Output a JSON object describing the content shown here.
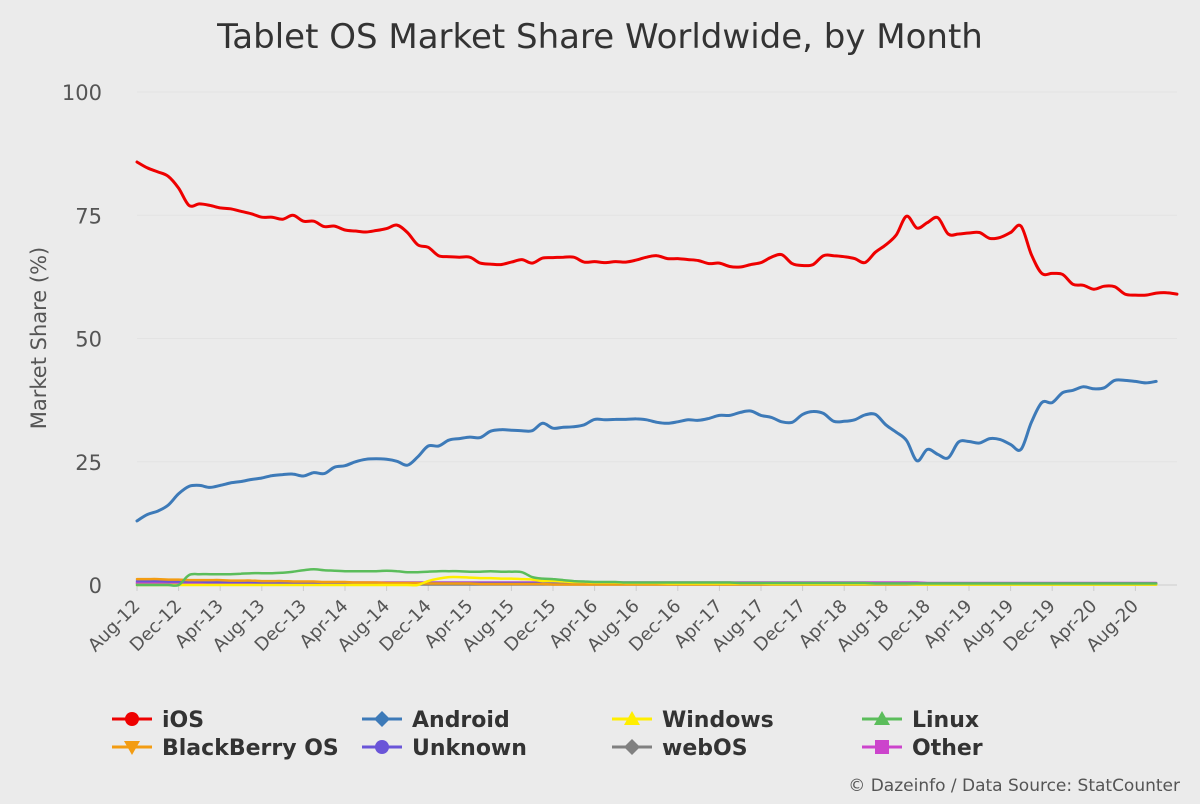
{
  "chart_data": {
    "type": "line",
    "title": "Tablet OS Market Share Worldwide, by Month",
    "ylabel": "Market Share (%)",
    "xlabel": "",
    "ylim": [
      0,
      100
    ],
    "yticks": [
      0,
      25,
      50,
      75,
      100
    ],
    "grid": true,
    "legend_position": "bottom",
    "credit": "© Dazeinfo / Data Source: StatCounter",
    "x_tick_labels": [
      "Aug-12",
      "Dec-12",
      "Apr-13",
      "Aug-13",
      "Dec-13",
      "Apr-14",
      "Aug-14",
      "Dec-14",
      "Apr-15",
      "Aug-15",
      "Dec-15",
      "Apr-16",
      "Aug-16",
      "Dec-16",
      "Apr-17",
      "Aug-17",
      "Dec-17",
      "Apr-18",
      "Aug-18",
      "Dec-18",
      "Apr-19",
      "Aug-19",
      "Dec-19",
      "Apr-20",
      "Aug-20"
    ],
    "x_start": "Aug-12",
    "x_end": "Oct-20",
    "series": [
      {
        "name": "iOS",
        "color": "#ee0000",
        "marker": "circle",
        "values": [
          85.8,
          84.6,
          83.8,
          82.9,
          80.5,
          77.0,
          77.3,
          77.0,
          76.5,
          76.3,
          75.8,
          75.3,
          74.6,
          74.6,
          74.2,
          75.0,
          73.8,
          73.8,
          72.7,
          72.8,
          72.0,
          71.8,
          71.6,
          71.9,
          72.3,
          73.0,
          71.5,
          69.0,
          68.5,
          66.8,
          66.6,
          66.5,
          66.5,
          65.3,
          65.1,
          65.0,
          65.5,
          66.0,
          65.3,
          66.3,
          66.4,
          66.5,
          66.5,
          65.5,
          65.6,
          65.4,
          65.6,
          65.5,
          65.9,
          66.5,
          66.8,
          66.2,
          66.2,
          66.0,
          65.8,
          65.2,
          65.3,
          64.6,
          64.5,
          65.0,
          65.4,
          66.5,
          67.0,
          65.2,
          64.8,
          65.0,
          66.8,
          66.8,
          66.6,
          66.2,
          65.4,
          67.5,
          69.0,
          71.0,
          74.8,
          72.4,
          73.5,
          74.5,
          71.2,
          71.2,
          71.4,
          71.5,
          70.3,
          70.5,
          71.5,
          72.8,
          67.0,
          63.2,
          63.2,
          63.0,
          61.0,
          60.8,
          60.0,
          60.6,
          60.5,
          59.0,
          58.8,
          58.8,
          59.2,
          59.3,
          59.0
        ]
      },
      {
        "name": "Android",
        "color": "#3d7ab8",
        "marker": "diamond",
        "values": [
          13.0,
          14.3,
          15.0,
          16.2,
          18.5,
          20.0,
          20.2,
          19.8,
          20.2,
          20.7,
          21.0,
          21.4,
          21.7,
          22.2,
          22.4,
          22.5,
          22.1,
          22.8,
          22.6,
          23.9,
          24.2,
          25.0,
          25.5,
          25.6,
          25.5,
          25.1,
          24.3,
          26.0,
          28.2,
          28.2,
          29.4,
          29.7,
          30.0,
          29.9,
          31.2,
          31.5,
          31.4,
          31.3,
          31.3,
          32.8,
          31.8,
          32.0,
          32.1,
          32.5,
          33.6,
          33.5,
          33.6,
          33.6,
          33.7,
          33.5,
          33.0,
          32.8,
          33.1,
          33.5,
          33.4,
          33.8,
          34.4,
          34.4,
          35.0,
          35.3,
          34.4,
          34.0,
          33.1,
          33.0,
          34.6,
          35.2,
          34.8,
          33.2,
          33.2,
          33.5,
          34.5,
          34.6,
          32.5,
          31.0,
          29.3,
          25.2,
          27.5,
          26.5,
          25.8,
          29.0,
          29.1,
          28.8,
          29.7,
          29.5,
          28.5,
          27.5,
          33.0,
          37.0,
          37.0,
          39.0,
          39.5,
          40.2,
          39.8,
          40.0,
          41.5,
          41.5,
          41.3,
          41.0,
          41.3
        ]
      },
      {
        "name": "Windows",
        "color": "#ffee00",
        "marker": "triangle",
        "values": [
          0,
          0,
          0,
          0,
          0,
          0,
          0,
          0,
          0,
          0,
          0,
          0,
          0,
          0,
          0,
          0,
          0,
          0,
          0,
          0,
          0,
          0,
          0,
          0,
          0,
          0,
          0,
          0,
          0.8,
          1.3,
          1.6,
          1.6,
          1.5,
          1.4,
          1.4,
          1.3,
          1.3,
          1.2,
          1.1,
          0.8,
          0.8,
          0.7,
          0.6,
          0.6,
          0.5,
          0.5,
          0.5,
          0.4,
          0.4,
          0.4,
          0.4,
          0.3,
          0.3,
          0.3,
          0.3,
          0.3,
          0.3,
          0.3,
          0.3,
          0.3,
          0.3,
          0.2,
          0.2,
          0.2,
          0.2,
          0.2,
          0.2,
          0.2,
          0.2,
          0.2,
          0.2,
          0.2,
          0.2,
          0.2,
          0.2,
          0.1,
          0.1,
          0.1,
          0.1,
          0.1,
          0.1,
          0.1,
          0.1,
          0.1,
          0.1,
          0.1,
          0.1,
          0.1,
          0.1,
          0.1,
          0.1,
          0.1,
          0.1,
          0.1,
          0.1,
          0.1,
          0.1,
          0.1,
          0.1
        ]
      },
      {
        "name": "Linux",
        "color": "#5bbd5b",
        "marker": "triangle",
        "values": [
          0,
          0,
          0,
          0,
          0,
          2.0,
          2.2,
          2.2,
          2.2,
          2.2,
          2.3,
          2.4,
          2.4,
          2.4,
          2.5,
          2.7,
          3.0,
          3.2,
          3.0,
          2.9,
          2.8,
          2.8,
          2.8,
          2.8,
          2.9,
          2.8,
          2.6,
          2.6,
          2.7,
          2.8,
          2.8,
          2.8,
          2.7,
          2.7,
          2.8,
          2.7,
          2.7,
          2.6,
          1.6,
          1.3,
          1.2,
          1.0,
          0.8,
          0.7,
          0.6,
          0.6,
          0.6,
          0.5,
          0.5,
          0.5,
          0.5,
          0.5,
          0.5,
          0.5,
          0.5,
          0.5,
          0.5,
          0.5,
          0.4,
          0.4,
          0.4,
          0.4,
          0.4,
          0.4,
          0.4,
          0.4,
          0.4,
          0.4,
          0.4,
          0.4,
          0.4,
          0.3,
          0.3,
          0.3,
          0.3,
          0.3,
          0.3,
          0.3,
          0.3,
          0.3,
          0.3,
          0.3,
          0.3,
          0.3,
          0.3,
          0.3,
          0.3,
          0.3,
          0.3,
          0.3,
          0.3,
          0.3,
          0.3,
          0.3,
          0.3,
          0.3,
          0.3,
          0.3,
          0.3
        ]
      },
      {
        "name": "BlackBerry OS",
        "color": "#f39c12",
        "marker": "triangle-down",
        "values": [
          1.2,
          1.2,
          1.2,
          1.1,
          1.1,
          1.0,
          1.0,
          1.0,
          1.0,
          0.9,
          0.9,
          0.9,
          0.8,
          0.8,
          0.8,
          0.7,
          0.7,
          0.7,
          0.6,
          0.6,
          0.6,
          0.5,
          0.5,
          0.5,
          0.4,
          0.4,
          0.4,
          0.4,
          0.3,
          0.3,
          0.3,
          0.3,
          0.3,
          0.2,
          0.2,
          0.2,
          0.2,
          0.2,
          0.2,
          0.2,
          0.1,
          0.1,
          0.1,
          0.1,
          0.1,
          0.1,
          0.1,
          0.1,
          0.1,
          0.1,
          0.1,
          0.1,
          0.1,
          0.1,
          0.1,
          0.1,
          0.1,
          0.1,
          0.1,
          0.1,
          0.1,
          0.1,
          0.1,
          0.1,
          0.1,
          0.1,
          0.1,
          0.1,
          0.1,
          0.1,
          0.1,
          0.1,
          0.1,
          0.1,
          0.1,
          0.1,
          0.1,
          0.1,
          0.1,
          0.1,
          0.1,
          0.1,
          0.1,
          0.1,
          0.1,
          0.1,
          0.1,
          0.1,
          0.1,
          0.1,
          0.1,
          0.1,
          0.1,
          0.1,
          0.1,
          0.1,
          0.1,
          0.1,
          0.1
        ]
      },
      {
        "name": "Unknown",
        "color": "#6a55d8",
        "marker": "circle",
        "values": [
          0.8,
          0.8,
          0.8,
          0.7,
          0.7,
          0.7,
          0.7,
          0.6,
          0.6,
          0.6,
          0.6,
          0.6,
          0.5,
          0.5,
          0.5,
          0.5,
          0.5,
          0.5,
          0.4,
          0.4,
          0.4,
          0.4,
          0.4,
          0.4,
          0.4,
          0.4,
          0.4,
          0.4,
          0.4,
          0.4,
          0.4,
          0.4,
          0.4,
          0.4,
          0.4,
          0.4,
          0.4,
          0.4,
          0.4,
          0.4,
          0.4,
          0.4,
          0.4,
          0.4,
          0.4,
          0.4,
          0.4,
          0.4,
          0.4,
          0.4,
          0.4,
          0.4,
          0.4,
          0.4,
          0.4,
          0.4,
          0.4,
          0.4,
          0.4,
          0.4,
          0.4,
          0.4,
          0.4,
          0.4,
          0.4,
          0.4,
          0.4,
          0.4,
          0.4,
          0.4,
          0.4,
          0.3,
          0.3,
          0.3,
          0.3,
          0.3,
          0.3,
          0.3,
          0.3,
          0.3,
          0.3,
          0.3,
          0.3,
          0.3,
          0.3,
          0.3,
          0.3,
          0.3,
          0.3,
          0.3,
          0.3,
          0.3,
          0.3,
          0.3,
          0.3,
          0.3,
          0.3,
          0.3,
          0.3
        ]
      },
      {
        "name": "webOS",
        "color": "#808080",
        "marker": "diamond",
        "values": [
          0.3,
          0.3,
          0.3,
          0.3,
          0.3,
          0.3,
          0.3,
          0.2,
          0.2,
          0.2,
          0.2,
          0.2,
          0.2,
          0.2,
          0.2,
          0.2,
          0.2,
          0.2,
          0.2,
          0.1,
          0.1,
          0.1,
          0.1,
          0.1,
          0.1,
          0.1,
          0.1,
          0.1,
          0.1,
          0.1,
          0.1,
          0.1,
          0.1,
          0.1,
          0.1,
          0.1,
          0.1,
          0.1,
          0.1,
          0.1,
          0.1,
          0.1,
          0.1,
          0.1,
          0.1,
          0.1,
          0.1,
          0.1,
          0.1,
          0.1,
          0.1,
          0.1,
          0.1,
          0.1,
          0.1,
          0.1,
          0.1,
          0.1,
          0.1,
          0.1,
          0.1,
          0.1,
          0.1,
          0.1,
          0.1,
          0.1,
          0.1,
          0.1,
          0.1,
          0.1,
          0.1,
          0.1,
          0.1,
          0.1,
          0.1,
          0.1,
          0.1,
          0.1,
          0.1,
          0.1,
          0.1,
          0.1,
          0.1,
          0.1,
          0.1,
          0.1,
          0.1,
          0.1,
          0.1,
          0.1,
          0.1,
          0.1,
          0.1,
          0.1,
          0.1,
          0.1,
          0.1,
          0.1,
          0.1
        ]
      },
      {
        "name": "Other",
        "color": "#cc44cc",
        "marker": "square",
        "values": [
          0.5,
          0.5,
          0.5,
          0.5,
          0.5,
          0.5,
          0.5,
          0.5,
          0.5,
          0.5,
          0.5,
          0.5,
          0.5,
          0.5,
          0.5,
          0.5,
          0.5,
          0.5,
          0.5,
          0.5,
          0.5,
          0.5,
          0.5,
          0.5,
          0.5,
          0.5,
          0.5,
          0.5,
          0.5,
          0.5,
          0.5,
          0.5,
          0.5,
          0.5,
          0.5,
          0.5,
          0.5,
          0.5,
          0.5,
          0.5,
          0.5,
          0.5,
          0.5,
          0.5,
          0.5,
          0.5,
          0.5,
          0.5,
          0.5,
          0.5,
          0.5,
          0.5,
          0.5,
          0.5,
          0.5,
          0.5,
          0.5,
          0.5,
          0.5,
          0.5,
          0.5,
          0.5,
          0.5,
          0.5,
          0.5,
          0.5,
          0.5,
          0.5,
          0.5,
          0.5,
          0.5,
          0.5,
          0.5,
          0.5,
          0.5,
          0.5,
          0.4,
          0.4,
          0.4,
          0.4,
          0.4,
          0.4,
          0.4,
          0.4,
          0.4,
          0.4,
          0.4,
          0.4,
          0.4,
          0.4,
          0.4,
          0.4,
          0.4,
          0.4,
          0.4,
          0.4,
          0.4,
          0.4,
          0.4
        ]
      }
    ]
  }
}
